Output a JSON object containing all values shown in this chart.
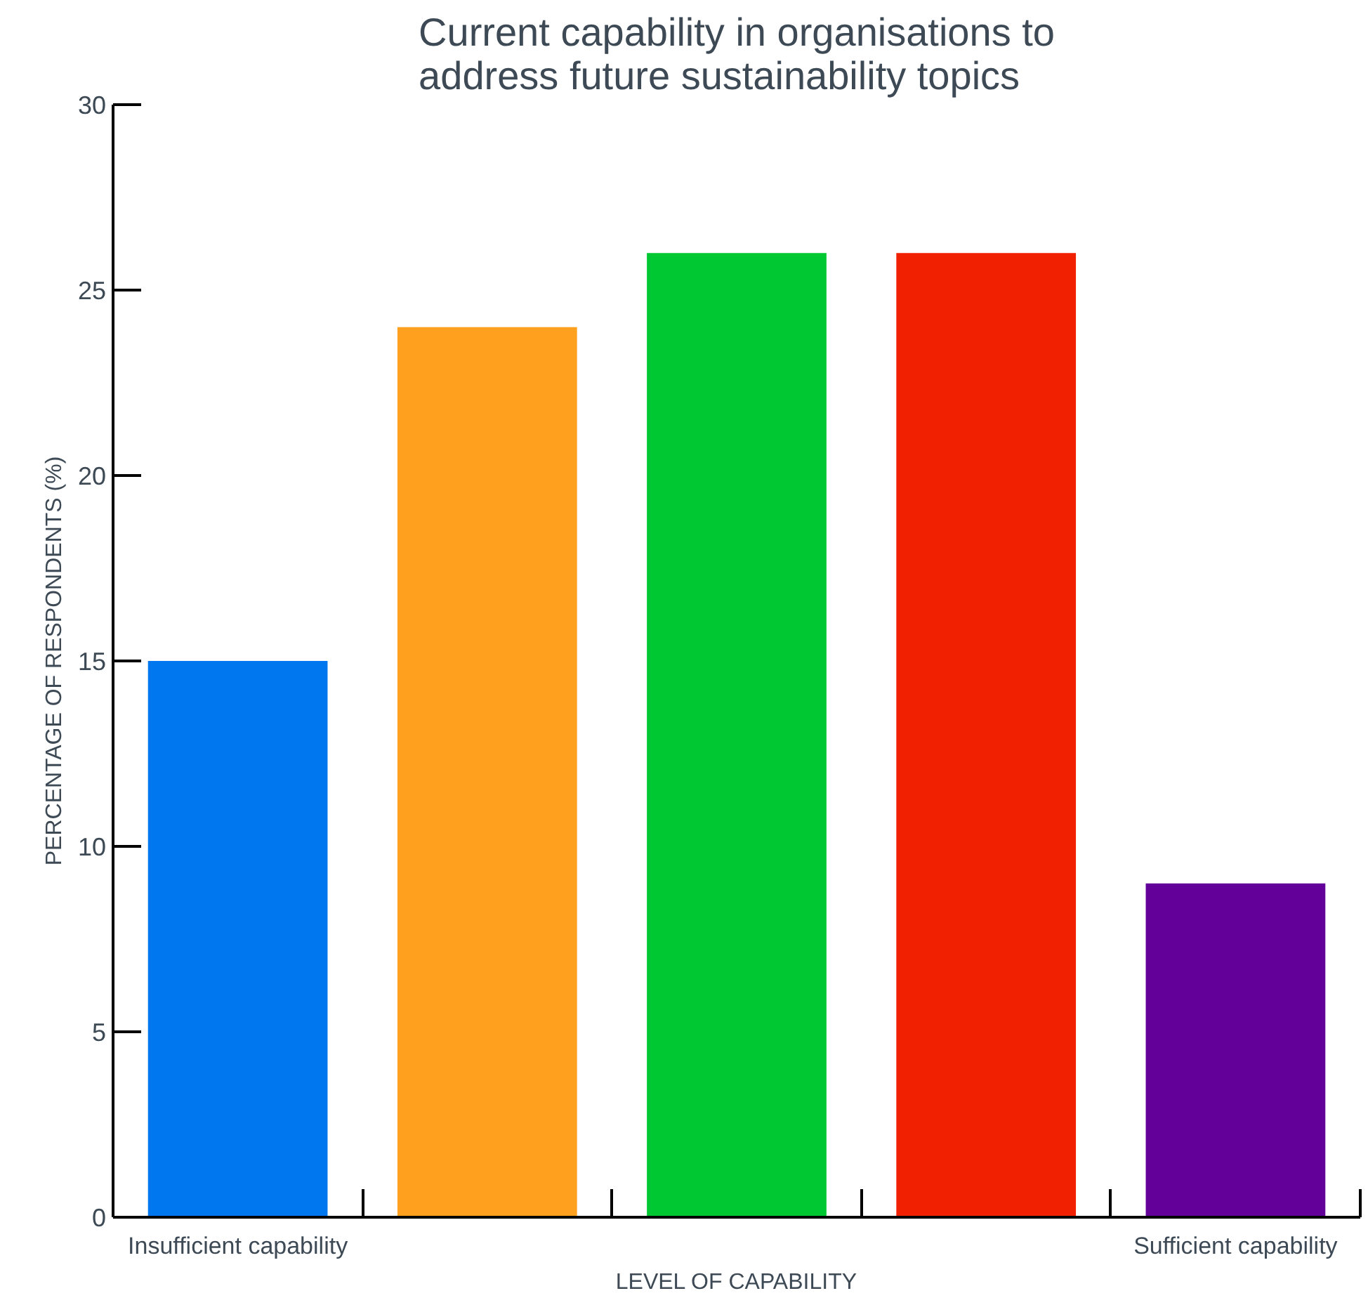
{
  "chart_data": {
    "type": "bar",
    "title": "Current capability in organisations to\naddress future sustainability topics",
    "xlabel": "LEVEL OF CAPABILITY",
    "ylabel": "PERCENTAGE OF RESPONDENTS (%)",
    "categories": [
      "Insufficient capability",
      null,
      null,
      null,
      "Sufficient capability"
    ],
    "values": [
      15,
      24,
      26,
      26,
      9
    ],
    "colors": [
      "#0077ee",
      "#ffa01e",
      "#00c832",
      "#f02000",
      "#620099"
    ],
    "ylim": [
      0,
      30
    ],
    "yticks": [
      0,
      5,
      10,
      15,
      20,
      25,
      30
    ],
    "grid": false
  }
}
